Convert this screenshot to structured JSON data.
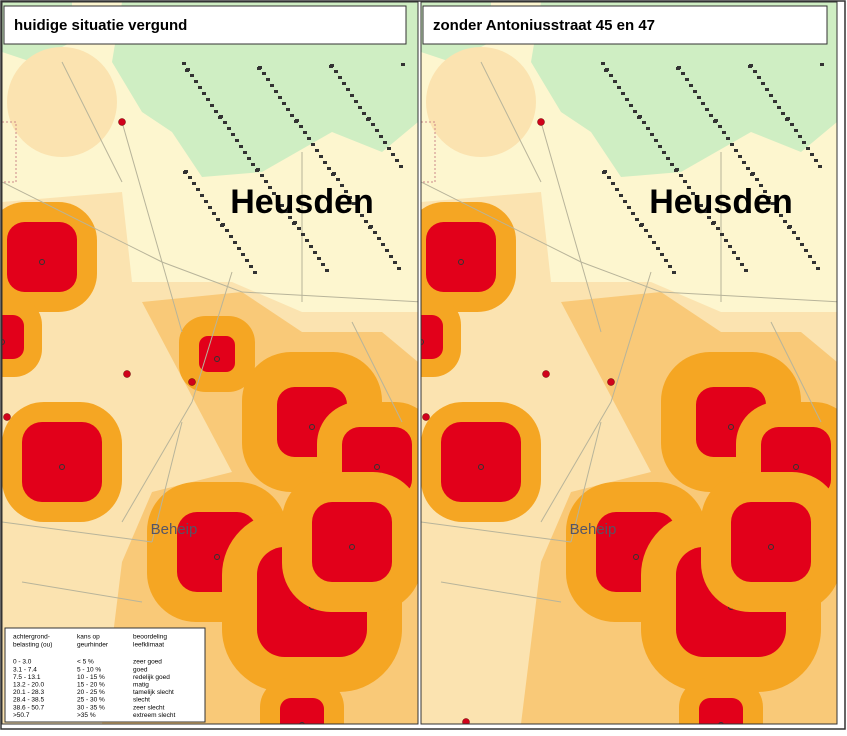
{
  "panels": [
    {
      "title": "huidige situatie vergund",
      "place_label": "Heusden",
      "area_label": "Beheip"
    },
    {
      "title": "zonder Antoniusstraat 45 en 47",
      "place_label": "Heusden",
      "area_label": "Beheip"
    }
  ],
  "legend": {
    "headers": [
      [
        "achtergrond-",
        "belasting (ou)"
      ],
      [
        "kans op",
        "geurhinder"
      ],
      [
        "beoordeling",
        "leefklimaat"
      ]
    ],
    "rows": [
      [
        "0 - 3.0",
        "< 5 %",
        "zeer goed"
      ],
      [
        "3.1 - 7.4",
        "5 - 10 %",
        "goed"
      ],
      [
        "7.5 - 13.1",
        "10 - 15 %",
        "redelijk goed"
      ],
      [
        "13.2 - 20.0",
        "15 - 20 %",
        "matig"
      ],
      [
        "20.1 - 28.3",
        "20 - 25 %",
        "tamelijk slecht"
      ],
      [
        "28.4 - 38.5",
        "25 - 30 %",
        "slecht"
      ],
      [
        "38.6 - 50.7",
        "30 - 35 %",
        "zeer slecht"
      ],
      [
        ">50.7",
        ">35 %",
        "extreem slecht"
      ]
    ]
  }
}
